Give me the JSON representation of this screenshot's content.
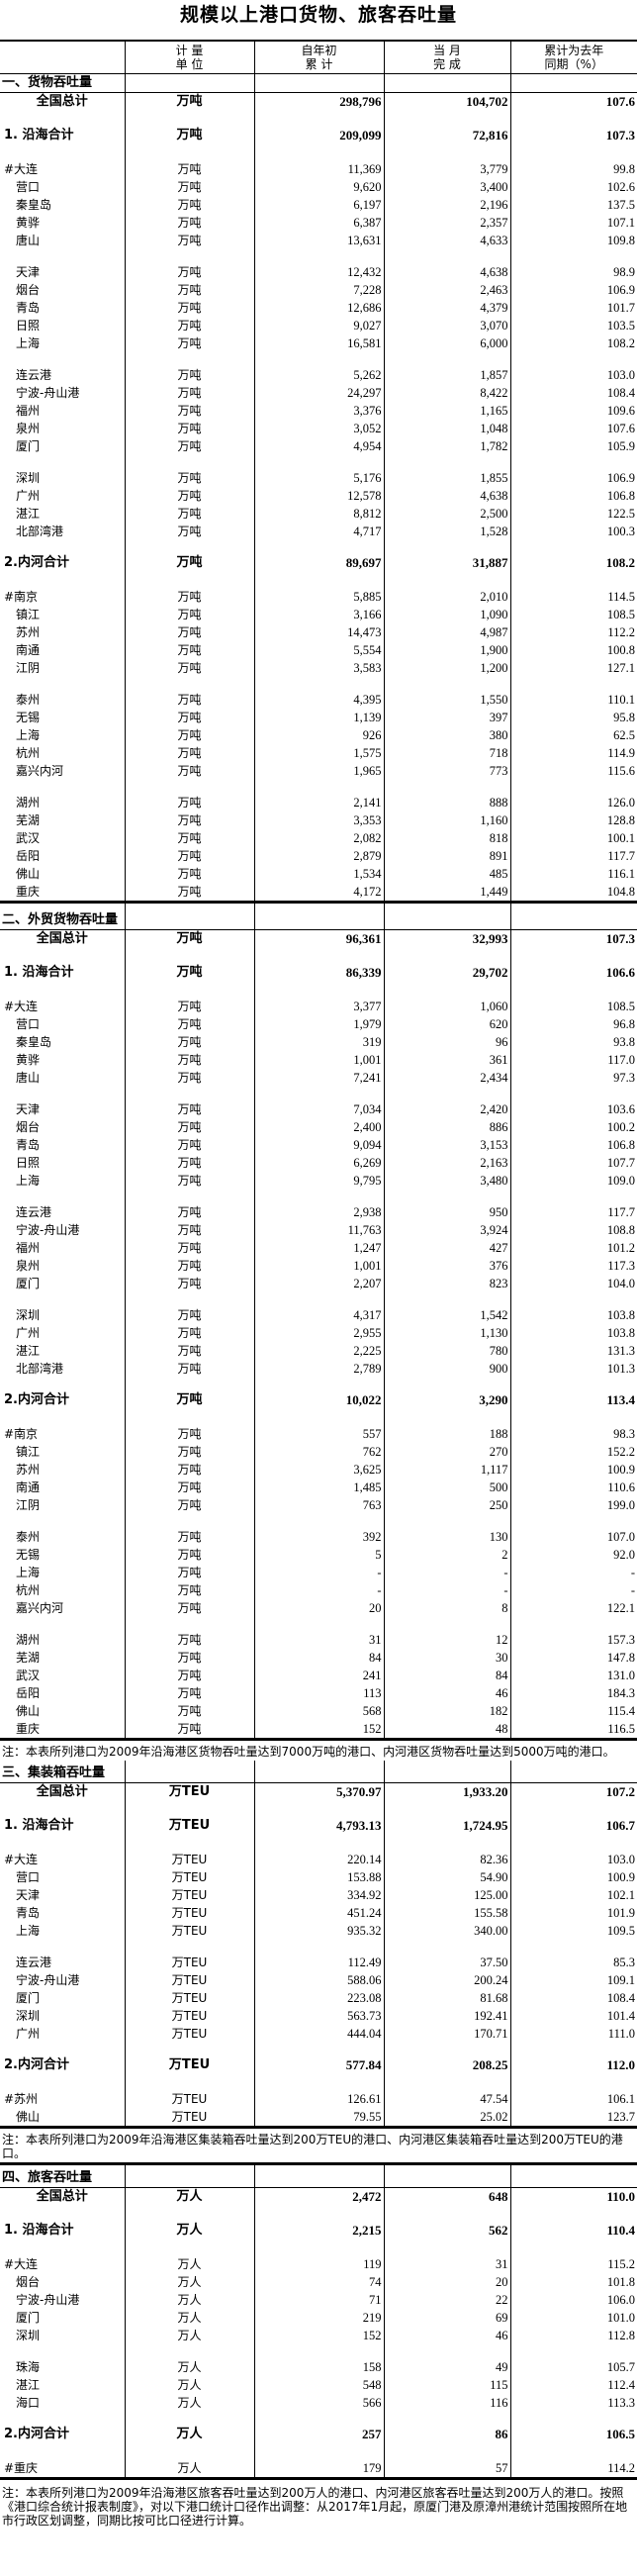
{
  "title": "规模以上港口货物、旅客吞吐量",
  "header": {
    "name": "",
    "unit": "计 量\n单 位",
    "ytd": "自年初\n累 计",
    "month": "当 月\n完 成",
    "pct": "累计为去年\n同期（%）"
  },
  "sections": [
    {
      "label": "一、货物吞吐量",
      "unit": "万吨",
      "total": {
        "name": "全国总计",
        "ytd": "298,796",
        "month": "104,702",
        "pct": "107.6"
      },
      "subtotals": [
        {
          "name": "1. 沿海合计",
          "ytd": "209,099",
          "month": "72,816",
          "pct": "107.3",
          "groups": [
            [
              {
                "name": "#大连",
                "ytd": "11,369",
                "month": "3,779",
                "pct": "99.8"
              },
              {
                "name": "营口",
                "ytd": "9,620",
                "month": "3,400",
                "pct": "102.6"
              },
              {
                "name": "秦皇岛",
                "ytd": "6,197",
                "month": "2,196",
                "pct": "137.5"
              },
              {
                "name": "黄骅",
                "ytd": "6,387",
                "month": "2,357",
                "pct": "107.1"
              },
              {
                "name": "唐山",
                "ytd": "13,631",
                "month": "4,633",
                "pct": "109.8"
              }
            ],
            [
              {
                "name": "天津",
                "ytd": "12,432",
                "month": "4,638",
                "pct": "98.9"
              },
              {
                "name": "烟台",
                "ytd": "7,228",
                "month": "2,463",
                "pct": "106.9"
              },
              {
                "name": "青岛",
                "ytd": "12,686",
                "month": "4,379",
                "pct": "101.7"
              },
              {
                "name": "日照",
                "ytd": "9,027",
                "month": "3,070",
                "pct": "103.5"
              },
              {
                "name": "上海",
                "ytd": "16,581",
                "month": "6,000",
                "pct": "108.2"
              }
            ],
            [
              {
                "name": "连云港",
                "ytd": "5,262",
                "month": "1,857",
                "pct": "103.0"
              },
              {
                "name": "宁波-舟山港",
                "ytd": "24,297",
                "month": "8,422",
                "pct": "108.4"
              },
              {
                "name": "福州",
                "ytd": "3,376",
                "month": "1,165",
                "pct": "109.6"
              },
              {
                "name": "泉州",
                "ytd": "3,052",
                "month": "1,048",
                "pct": "107.6"
              },
              {
                "name": "厦门",
                "ytd": "4,954",
                "month": "1,782",
                "pct": "105.9"
              }
            ],
            [
              {
                "name": "深圳",
                "ytd": "5,176",
                "month": "1,855",
                "pct": "106.9"
              },
              {
                "name": "广州",
                "ytd": "12,578",
                "month": "4,638",
                "pct": "106.8"
              },
              {
                "name": "湛江",
                "ytd": "8,812",
                "month": "2,500",
                "pct": "122.5"
              },
              {
                "name": "北部湾港",
                "ytd": "4,717",
                "month": "1,528",
                "pct": "100.3"
              }
            ]
          ]
        },
        {
          "name": "2.内河合计",
          "ytd": "89,697",
          "month": "31,887",
          "pct": "108.2",
          "groups": [
            [
              {
                "name": "#南京",
                "ytd": "5,885",
                "month": "2,010",
                "pct": "114.5"
              },
              {
                "name": "镇江",
                "ytd": "3,166",
                "month": "1,090",
                "pct": "108.5"
              },
              {
                "name": "苏州",
                "ytd": "14,473",
                "month": "4,987",
                "pct": "112.2"
              },
              {
                "name": "南通",
                "ytd": "5,554",
                "month": "1,900",
                "pct": "100.8"
              },
              {
                "name": "江阴",
                "ytd": "3,583",
                "month": "1,200",
                "pct": "127.1"
              }
            ],
            [
              {
                "name": "泰州",
                "ytd": "4,395",
                "month": "1,550",
                "pct": "110.1"
              },
              {
                "name": "无锡",
                "ytd": "1,139",
                "month": "397",
                "pct": "95.8"
              },
              {
                "name": "上海",
                "ytd": "926",
                "month": "380",
                "pct": "62.5"
              },
              {
                "name": "杭州",
                "ytd": "1,575",
                "month": "718",
                "pct": "114.9"
              },
              {
                "name": "嘉兴内河",
                "ytd": "1,965",
                "month": "773",
                "pct": "115.6"
              }
            ],
            [
              {
                "name": "湖州",
                "ytd": "2,141",
                "month": "888",
                "pct": "126.0"
              },
              {
                "name": "芜湖",
                "ytd": "3,353",
                "month": "1,160",
                "pct": "128.8"
              },
              {
                "name": "武汉",
                "ytd": "2,082",
                "month": "818",
                "pct": "100.1"
              },
              {
                "name": "岳阳",
                "ytd": "2,879",
                "month": "891",
                "pct": "117.7"
              },
              {
                "name": "佛山",
                "ytd": "1,534",
                "month": "485",
                "pct": "116.1"
              },
              {
                "name": "重庆",
                "ytd": "4,172",
                "month": "1,449",
                "pct": "104.8"
              }
            ]
          ]
        }
      ],
      "note": ""
    },
    {
      "label": "二、外贸货物吞吐量",
      "unit": "万吨",
      "total": {
        "name": "全国总计",
        "ytd": "96,361",
        "month": "32,993",
        "pct": "107.3"
      },
      "subtotals": [
        {
          "name": "1. 沿海合计",
          "ytd": "86,339",
          "month": "29,702",
          "pct": "106.6",
          "groups": [
            [
              {
                "name": "#大连",
                "ytd": "3,377",
                "month": "1,060",
                "pct": "108.5"
              },
              {
                "name": "营口",
                "ytd": "1,979",
                "month": "620",
                "pct": "96.8"
              },
              {
                "name": "秦皇岛",
                "ytd": "319",
                "month": "96",
                "pct": "93.8"
              },
              {
                "name": "黄骅",
                "ytd": "1,001",
                "month": "361",
                "pct": "117.0"
              },
              {
                "name": "唐山",
                "ytd": "7,241",
                "month": "2,434",
                "pct": "97.3"
              }
            ],
            [
              {
                "name": "天津",
                "ytd": "7,034",
                "month": "2,420",
                "pct": "103.6"
              },
              {
                "name": "烟台",
                "ytd": "2,400",
                "month": "886",
                "pct": "100.2"
              },
              {
                "name": "青岛",
                "ytd": "9,094",
                "month": "3,153",
                "pct": "106.8"
              },
              {
                "name": "日照",
                "ytd": "6,269",
                "month": "2,163",
                "pct": "107.7"
              },
              {
                "name": "上海",
                "ytd": "9,795",
                "month": "3,480",
                "pct": "109.0"
              }
            ],
            [
              {
                "name": "连云港",
                "ytd": "2,938",
                "month": "950",
                "pct": "117.7"
              },
              {
                "name": "宁波-舟山港",
                "ytd": "11,763",
                "month": "3,924",
                "pct": "108.8"
              },
              {
                "name": "福州",
                "ytd": "1,247",
                "month": "427",
                "pct": "101.2"
              },
              {
                "name": "泉州",
                "ytd": "1,001",
                "month": "376",
                "pct": "117.3"
              },
              {
                "name": "厦门",
                "ytd": "2,207",
                "month": "823",
                "pct": "104.0"
              }
            ],
            [
              {
                "name": "深圳",
                "ytd": "4,317",
                "month": "1,542",
                "pct": "103.8"
              },
              {
                "name": "广州",
                "ytd": "2,955",
                "month": "1,130",
                "pct": "103.8"
              },
              {
                "name": "湛江",
                "ytd": "2,225",
                "month": "780",
                "pct": "131.3"
              },
              {
                "name": "北部湾港",
                "ytd": "2,789",
                "month": "900",
                "pct": "101.3"
              }
            ]
          ]
        },
        {
          "name": "2.内河合计",
          "ytd": "10,022",
          "month": "3,290",
          "pct": "113.4",
          "groups": [
            [
              {
                "name": "#南京",
                "ytd": "557",
                "month": "188",
                "pct": "98.3"
              },
              {
                "name": "镇江",
                "ytd": "762",
                "month": "270",
                "pct": "152.2"
              },
              {
                "name": "苏州",
                "ytd": "3,625",
                "month": "1,117",
                "pct": "100.9"
              },
              {
                "name": "南通",
                "ytd": "1,485",
                "month": "500",
                "pct": "110.6"
              },
              {
                "name": "江阴",
                "ytd": "763",
                "month": "250",
                "pct": "199.0"
              }
            ],
            [
              {
                "name": "泰州",
                "ytd": "392",
                "month": "130",
                "pct": "107.0"
              },
              {
                "name": "无锡",
                "ytd": "5",
                "month": "2",
                "pct": "92.0"
              },
              {
                "name": "上海",
                "ytd": "-",
                "month": "-",
                "pct": "-"
              },
              {
                "name": "杭州",
                "ytd": "-",
                "month": "-",
                "pct": "-"
              },
              {
                "name": "嘉兴内河",
                "ytd": "20",
                "month": "8",
                "pct": "122.1"
              }
            ],
            [
              {
                "name": "湖州",
                "ytd": "31",
                "month": "12",
                "pct": "157.3"
              },
              {
                "name": "芜湖",
                "ytd": "84",
                "month": "30",
                "pct": "147.8"
              },
              {
                "name": "武汉",
                "ytd": "241",
                "month": "84",
                "pct": "131.0"
              },
              {
                "name": "岳阳",
                "ytd": "113",
                "month": "46",
                "pct": "184.3"
              },
              {
                "name": "佛山",
                "ytd": "568",
                "month": "182",
                "pct": "115.4"
              },
              {
                "name": "重庆",
                "ytd": "152",
                "month": "48",
                "pct": "116.5"
              }
            ]
          ]
        }
      ],
      "note": "注：本表所列港口为2009年沿海港区货物吞吐量达到7000万吨的港口、内河港区货物吞吐量达到5000万吨的港口。"
    },
    {
      "label": "三、集装箱吞吐量",
      "unit": "万TEU",
      "total": {
        "name": "全国总计",
        "ytd": "5,370.97",
        "month": "1,933.20",
        "pct": "107.2"
      },
      "subtotals": [
        {
          "name": "1. 沿海合计",
          "ytd": "4,793.13",
          "month": "1,724.95",
          "pct": "106.7",
          "groups": [
            [
              {
                "name": "#大连",
                "ytd": "220.14",
                "month": "82.36",
                "pct": "103.0"
              },
              {
                "name": "营口",
                "ytd": "153.88",
                "month": "54.90",
                "pct": "100.9"
              },
              {
                "name": "天津",
                "ytd": "334.92",
                "month": "125.00",
                "pct": "102.1"
              },
              {
                "name": "青岛",
                "ytd": "451.24",
                "month": "155.58",
                "pct": "101.9"
              },
              {
                "name": "上海",
                "ytd": "935.32",
                "month": "340.00",
                "pct": "109.5"
              }
            ],
            [
              {
                "name": "连云港",
                "ytd": "112.49",
                "month": "37.50",
                "pct": "85.3"
              },
              {
                "name": "宁波-舟山港",
                "ytd": "588.06",
                "month": "200.24",
                "pct": "109.1"
              },
              {
                "name": "厦门",
                "ytd": "223.08",
                "month": "81.68",
                "pct": "108.4"
              },
              {
                "name": "深圳",
                "ytd": "563.73",
                "month": "192.41",
                "pct": "101.4"
              },
              {
                "name": "广州",
                "ytd": "444.04",
                "month": "170.71",
                "pct": "111.0"
              }
            ]
          ]
        },
        {
          "name": "2.内河合计",
          "ytd": "577.84",
          "month": "208.25",
          "pct": "112.0",
          "groups": [
            [
              {
                "name": "#苏州",
                "ytd": "126.61",
                "month": "47.54",
                "pct": "106.1"
              },
              {
                "name": "佛山",
                "ytd": "79.55",
                "month": "25.02",
                "pct": "123.7"
              }
            ]
          ]
        }
      ],
      "note": "注：本表所列港口为2009年沿海港区集装箱吞吐量达到200万TEU的港口、内河港区集装箱吞吐量达到200万TEU的港口。"
    },
    {
      "label": "四、旅客吞吐量",
      "unit": "万人",
      "total": {
        "name": "全国总计",
        "ytd": "2,472",
        "month": "648",
        "pct": "110.0"
      },
      "subtotals": [
        {
          "name": "1. 沿海合计",
          "ytd": "2,215",
          "month": "562",
          "pct": "110.4",
          "groups": [
            [
              {
                "name": "#大连",
                "ytd": "119",
                "month": "31",
                "pct": "115.2"
              },
              {
                "name": "烟台",
                "ytd": "74",
                "month": "20",
                "pct": "101.8"
              },
              {
                "name": "宁波-舟山港",
                "ytd": "71",
                "month": "22",
                "pct": "106.0"
              },
              {
                "name": "厦门",
                "ytd": "219",
                "month": "69",
                "pct": "101.0"
              },
              {
                "name": "深圳",
                "ytd": "152",
                "month": "46",
                "pct": "112.8"
              }
            ],
            [
              {
                "name": "珠海",
                "ytd": "158",
                "month": "49",
                "pct": "105.7"
              },
              {
                "name": "湛江",
                "ytd": "548",
                "month": "115",
                "pct": "112.4"
              },
              {
                "name": "海口",
                "ytd": "566",
                "month": "116",
                "pct": "113.3"
              }
            ]
          ]
        },
        {
          "name": "2.内河合计",
          "ytd": "257",
          "month": "86",
          "pct": "106.5",
          "groups": [
            [
              {
                "name": "#重庆",
                "ytd": "179",
                "month": "57",
                "pct": "114.2"
              }
            ]
          ]
        }
      ],
      "note": "注：本表所列港口为2009年沿海港区旅客吞吐量达到200万人的港口、内河港区旅客吞吐量达到200万人的港口。按照《港口综合统计报表制度》，对以下港口统计口径作出调整：从2017年1月起，原厦门港及原漳州港统计范围按照所在地市行政区划调整，同期比按可比口径进行计算。"
    }
  ]
}
